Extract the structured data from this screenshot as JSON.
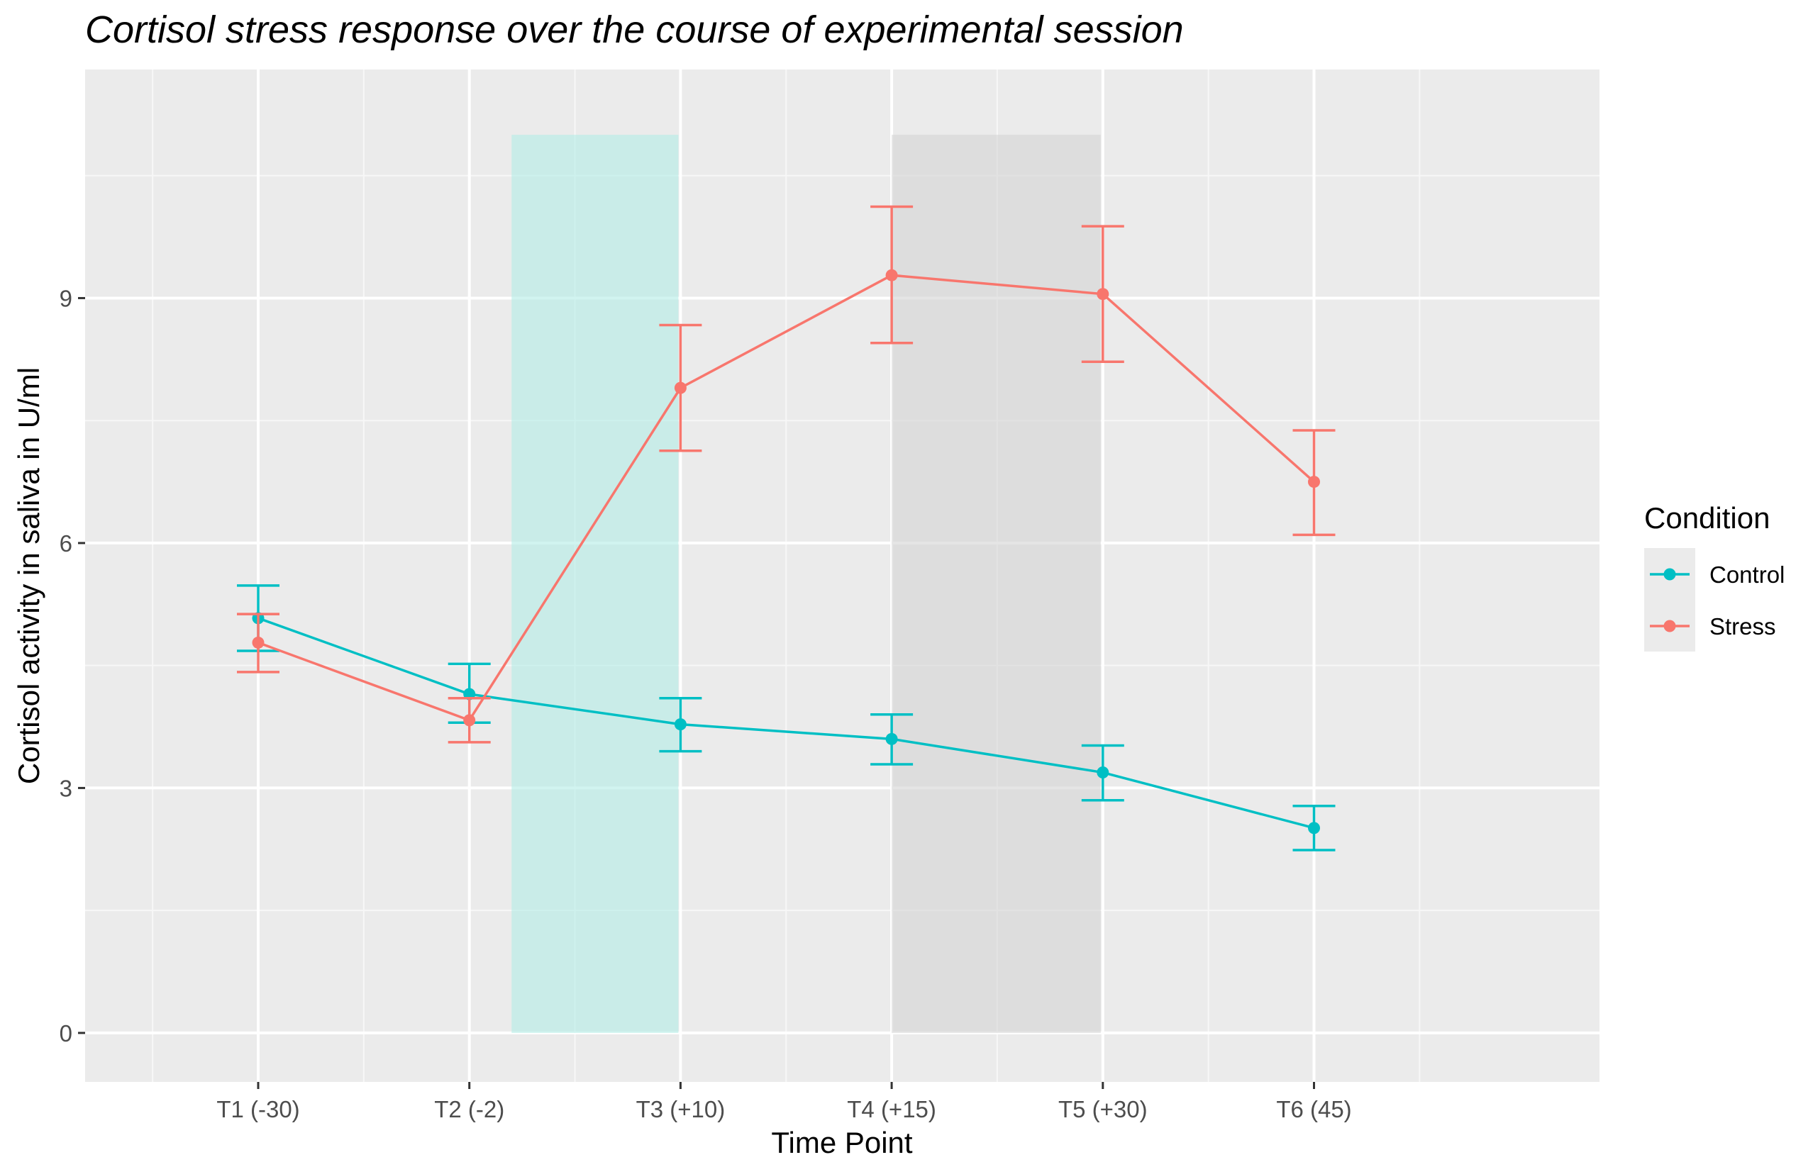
{
  "chart_data": {
    "type": "line",
    "title": "Cortisol stress response over the course of experimental session",
    "xlabel": "Time Point",
    "ylabel": "Cortisol activity in saliva in U/ml",
    "categories": [
      "T1 (-30)",
      "T2 (-2)",
      "T3 (+10)",
      "T4 (+15)",
      "T5 (+30)",
      "T6 (45)"
    ],
    "ylim": [
      -0.6,
      11.8
    ],
    "yticks": [
      0,
      3,
      6,
      9
    ],
    "grid": true,
    "legend": {
      "title": "Condition",
      "position": "right"
    },
    "shaded_regions": [
      {
        "x_start": 2.2,
        "x_end": 2.99,
        "y_start": 0,
        "y_end": 11.0,
        "color": "#b3ede6"
      },
      {
        "x_start": 4.0,
        "x_end": 4.99,
        "y_start": 0,
        "y_end": 11.0,
        "color": "#d3d3d3"
      }
    ],
    "series": [
      {
        "name": "Control",
        "color": "#00bfc4",
        "values": [
          5.08,
          4.15,
          3.78,
          3.6,
          3.19,
          2.51
        ],
        "lower": [
          4.68,
          3.8,
          3.45,
          3.29,
          2.85,
          2.24
        ],
        "upper": [
          5.48,
          4.52,
          4.1,
          3.9,
          3.52,
          2.78
        ]
      },
      {
        "name": "Stress",
        "color": "#f8766d",
        "values": [
          4.78,
          3.83,
          7.9,
          9.28,
          9.05,
          6.75
        ],
        "lower": [
          4.42,
          3.56,
          7.13,
          8.45,
          8.22,
          6.1
        ],
        "upper": [
          5.13,
          4.1,
          8.67,
          10.12,
          9.88,
          7.38
        ]
      }
    ]
  }
}
